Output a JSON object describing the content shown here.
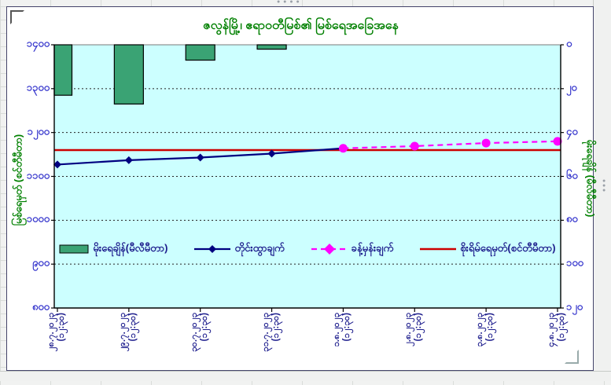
{
  "chart_data": {
    "type": "combo-bar-line",
    "title": "ဇလွန်မြို့၊ ဧရာဝတီမြစ်၏ မြစ်ရေအခြေအနေ",
    "categories": [
      {
        "date": "၂၈.၇.၂၀၂၃",
        "time": "(၁၂:၃၀)"
      },
      {
        "date": "၂၉.၇.၂၀၂၃",
        "time": "(၁၂:၃၀)"
      },
      {
        "date": "၃၀.၇.၂၀၂၃",
        "time": "(၁၂:၃၀)"
      },
      {
        "date": "၃၁.၇.၂၀၂၃",
        "time": "(၁၂:၃၀)"
      },
      {
        "date": "၁.၈.၂၀၂၃",
        "time": "(၁၂:၃၀)"
      },
      {
        "date": "၂.၈.၂၀၂၃",
        "time": "(၁၂:၃၀)"
      },
      {
        "date": "၃.၈.၂၀၂၃",
        "time": "(၁၂:၃၀)"
      },
      {
        "date": "၄.၈.၂၀၂၃",
        "time": "(၁၂:၃၀)"
      }
    ],
    "series": [
      {
        "name": "မိုးရေချိန်(မီလီမီတာ)",
        "type": "bar",
        "axis": "right",
        "values": [
          23,
          27,
          7,
          2,
          null,
          null,
          null,
          null
        ]
      },
      {
        "name": "တိုင်းထွာချက်",
        "type": "line",
        "axis": "left",
        "marker": "diamond",
        "values": [
          1127,
          1137,
          1143,
          1152,
          1164,
          null,
          null,
          null
        ]
      },
      {
        "name": "ခန့်မှန်းချက်",
        "type": "line-dashed",
        "axis": "left",
        "marker": "circle",
        "values": [
          null,
          null,
          null,
          null,
          1164,
          1169,
          1176,
          1180
        ]
      },
      {
        "name": "စိုးရိမ်ရေမှတ်(စင်တီမီတာ)",
        "type": "hline",
        "axis": "left",
        "value": 1160
      }
    ],
    "left_axis": {
      "title": "မြစ်ရေမှတ် (စင်တီမီတာ)",
      "min": 800,
      "max": 1400,
      "step": 100,
      "tick_labels": [
        "၁၄၀၀",
        "၁၃၀၀",
        "၁၂၀၀",
        "၁၁၀၀",
        "၁၀၀၀",
        "၉၀၀",
        "၈၀၀"
      ]
    },
    "right_axis": {
      "title": "မိုးရေချိန် (မီလီမီတာ)",
      "min": 0,
      "max": 120,
      "step": 20,
      "inverted": true,
      "tick_labels": [
        "၀",
        "၂၀",
        "၄၀",
        "၆၀",
        "၈၀",
        "၁၀၀",
        "၁၂၀"
      ]
    },
    "grid": "dashed-horizontal",
    "legend_position": "inside-bottom"
  },
  "colors": {
    "title_text": "#008000",
    "axis_tick_text": "#3333cc",
    "x_label_text": "#1c1c8c",
    "legend_text": "#1c1c8c",
    "bar_fill": "#3aa374",
    "bar_border": "#000000",
    "observed_line": "#000080",
    "forecast_line": "#ff00ff",
    "danger_line": "#cc0000",
    "plot_background": "#ccffff",
    "axis_line": "#000000"
  }
}
